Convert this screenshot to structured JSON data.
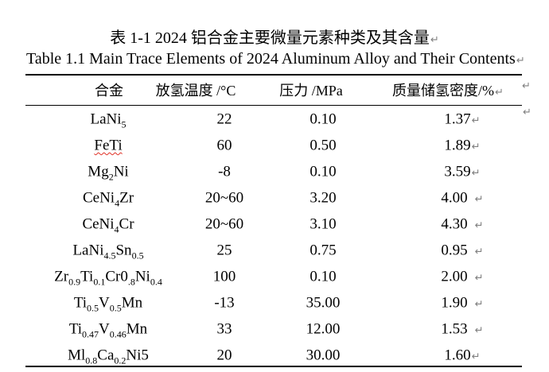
{
  "doc": {
    "title_cn": "表 1-1 2024 铝合金主要微量元素种类及其含量",
    "title_en": "Table 1.1 Main Trace Elements of 2024 Aluminum Alloy and Their Contents",
    "return_mark": "↵"
  },
  "table": {
    "headers": [
      {
        "label": "合金"
      },
      {
        "label": "放氢温度 /°C"
      },
      {
        "label": "压力 /MPa"
      },
      {
        "label": "质量储氢密度/%"
      }
    ],
    "rows": [
      {
        "formula": [
          {
            "t": "LaNi"
          },
          {
            "t": "5",
            "sub": true
          }
        ],
        "temp": "22",
        "pressure": "0.10",
        "density": "1.37",
        "gap": false,
        "spellcheck": false
      },
      {
        "formula": [
          {
            "t": "FeTi"
          }
        ],
        "temp": "60",
        "pressure": "0.50",
        "density": "1.89",
        "gap": false,
        "spellcheck": true
      },
      {
        "formula": [
          {
            "t": "Mg"
          },
          {
            "t": "2",
            "sub": true
          },
          {
            "t": "Ni"
          }
        ],
        "temp": "-8",
        "pressure": "0.10",
        "density": "3.59",
        "gap": false,
        "spellcheck": false
      },
      {
        "formula": [
          {
            "t": "CeNi"
          },
          {
            "t": "4",
            "sub": true
          },
          {
            "t": "Zr"
          }
        ],
        "temp": "20~60",
        "pressure": "3.20",
        "density": "4.00",
        "gap": true,
        "spellcheck": false
      },
      {
        "formula": [
          {
            "t": "CeNi"
          },
          {
            "t": "4",
            "sub": true
          },
          {
            "t": "Cr"
          }
        ],
        "temp": "20~60",
        "pressure": "3.10",
        "density": "4.30",
        "gap": true,
        "spellcheck": false
      },
      {
        "formula": [
          {
            "t": "LaNi"
          },
          {
            "t": "4.5",
            "sub": true
          },
          {
            "t": "Sn"
          },
          {
            "t": "0.5",
            "sub": true
          }
        ],
        "temp": "25",
        "pressure": "0.75",
        "density": "0.95",
        "gap": true,
        "spellcheck": false
      },
      {
        "formula": [
          {
            "t": "Zr"
          },
          {
            "t": "0.9",
            "sub": true
          },
          {
            "t": "Ti"
          },
          {
            "t": "0.1",
            "sub": true
          },
          {
            "t": "Cr0"
          },
          {
            "t": ".8",
            "sub": true
          },
          {
            "t": "Ni"
          },
          {
            "t": "0.4",
            "sub": true
          }
        ],
        "temp": "100",
        "pressure": "0.10",
        "density": "2.00",
        "gap": true,
        "spellcheck": false
      },
      {
        "formula": [
          {
            "t": "Ti"
          },
          {
            "t": "0.5",
            "sub": true
          },
          {
            "t": "V"
          },
          {
            "t": "0.5",
            "sub": true
          },
          {
            "t": "Mn"
          }
        ],
        "temp": "-13",
        "pressure": "35.00",
        "density": "1.90",
        "gap": true,
        "spellcheck": false
      },
      {
        "formula": [
          {
            "t": "Ti"
          },
          {
            "t": "0.47",
            "sub": true
          },
          {
            "t": "V"
          },
          {
            "t": "0.46",
            "sub": true
          },
          {
            "t": "Mn"
          }
        ],
        "temp": "33",
        "pressure": "12.00",
        "density": "1.53",
        "gap": true,
        "spellcheck": false
      },
      {
        "formula": [
          {
            "t": "Ml"
          },
          {
            "t": "0.8",
            "sub": true
          },
          {
            "t": "Ca"
          },
          {
            "t": "0.2",
            "sub": true
          },
          {
            "t": "Ni5"
          }
        ],
        "temp": "20",
        "pressure": "30.00",
        "density": "1.60",
        "gap": false,
        "spellcheck": false
      }
    ]
  },
  "colors": {
    "text": "#000000",
    "formatting_mark": "#7f7f7f",
    "spellcheck_underline": "#e03025"
  }
}
